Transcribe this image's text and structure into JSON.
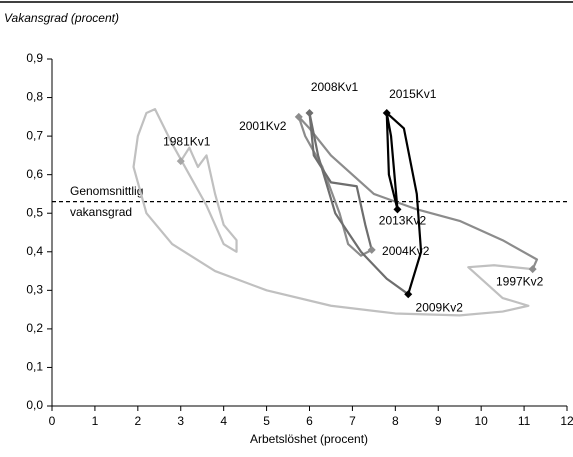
{
  "chart_data": {
    "type": "line",
    "title": "Vakansgrad (procent)",
    "x_label": "Arbetslöshet (procent)",
    "xlim": [
      0,
      12
    ],
    "xticks": [
      0,
      1,
      2,
      3,
      4,
      5,
      6,
      7,
      8,
      9,
      10,
      11,
      12
    ],
    "ylim": [
      0,
      0.9
    ],
    "yticks": [
      {
        "value": 0,
        "label": "0,0"
      },
      {
        "value": 0.1,
        "label": "0,1"
      },
      {
        "value": 0.2,
        "label": "0,2"
      },
      {
        "value": 0.3,
        "label": "0,3"
      },
      {
        "value": 0.4,
        "label": "0,4"
      },
      {
        "value": 0.5,
        "label": "0,5"
      },
      {
        "value": 0.6,
        "label": "0,6"
      },
      {
        "value": 0.7,
        "label": "0,7"
      },
      {
        "value": 0.8,
        "label": "0,8"
      },
      {
        "value": 0.9,
        "label": "0,9"
      }
    ],
    "reference_line": {
      "value": 0.53,
      "label_lines": [
        "Genomsnittlig",
        "vakansgrad"
      ]
    },
    "series": [
      {
        "color": "#c0c0c0",
        "x": [
          3.0,
          3.2,
          3.4,
          3.6,
          3.8,
          4.0,
          4.3,
          4.3,
          4.0,
          3.6,
          3.2,
          2.8,
          2.4,
          2.2,
          2.0,
          1.9,
          2.2,
          2.8,
          3.8,
          5.0,
          6.5,
          8.0,
          9.5,
          10.5,
          11.1,
          10.5,
          9.7,
          10.3,
          11.2
        ],
        "values": [
          0.635,
          0.67,
          0.62,
          0.65,
          0.55,
          0.47,
          0.43,
          0.4,
          0.42,
          0.52,
          0.6,
          0.68,
          0.77,
          0.76,
          0.7,
          0.62,
          0.5,
          0.42,
          0.35,
          0.3,
          0.26,
          0.24,
          0.235,
          0.245,
          0.26,
          0.28,
          0.36,
          0.365,
          0.355
        ]
      },
      {
        "color": "#8c8c8c",
        "x": [
          11.2,
          11.3,
          10.5,
          9.5,
          8.5,
          7.5,
          6.5,
          6.0,
          5.75,
          5.9,
          6.3,
          6.7,
          6.9,
          7.2,
          7.45
        ],
        "values": [
          0.355,
          0.38,
          0.43,
          0.48,
          0.51,
          0.55,
          0.65,
          0.72,
          0.75,
          0.7,
          0.62,
          0.5,
          0.42,
          0.39,
          0.405
        ]
      },
      {
        "color": "#6e6e6e",
        "x": [
          7.45,
          7.3,
          7.1,
          6.5,
          6.1,
          6.0,
          6.2,
          6.6,
          7.2,
          7.8,
          8.3
        ],
        "values": [
          0.405,
          0.47,
          0.57,
          0.58,
          0.65,
          0.76,
          0.65,
          0.5,
          0.4,
          0.33,
          0.29
        ]
      },
      {
        "color": "#000000",
        "x": [
          8.3,
          8.6,
          8.5,
          8.2,
          7.8,
          7.85,
          8.05,
          7.9,
          7.8
        ],
        "values": [
          0.29,
          0.4,
          0.55,
          0.72,
          0.76,
          0.6,
          0.51,
          0.7,
          0.76
        ]
      }
    ],
    "annotations": [
      {
        "text": "1981Kv1",
        "x": 3.0,
        "y": 0.635,
        "color": "#a6a6a6"
      },
      {
        "text": "1997Kv2",
        "x": 11.2,
        "y": 0.355,
        "color": "#8c8c8c"
      },
      {
        "text": "2001Kv2",
        "x": 5.75,
        "y": 0.75,
        "color": "#8c8c8c"
      },
      {
        "text": "2004Kv2",
        "x": 7.45,
        "y": 0.405,
        "color": "#8c8c8c"
      },
      {
        "text": "2008Kv1",
        "x": 6.0,
        "y": 0.76,
        "color": "#6e6e6e"
      },
      {
        "text": "2009Kv2",
        "x": 8.3,
        "y": 0.29,
        "color": "#000000"
      },
      {
        "text": "2013Kv2",
        "x": 8.05,
        "y": 0.51,
        "color": "#000000"
      },
      {
        "text": "2015Kv1",
        "x": 7.8,
        "y": 0.76,
        "color": "#000000"
      }
    ]
  }
}
